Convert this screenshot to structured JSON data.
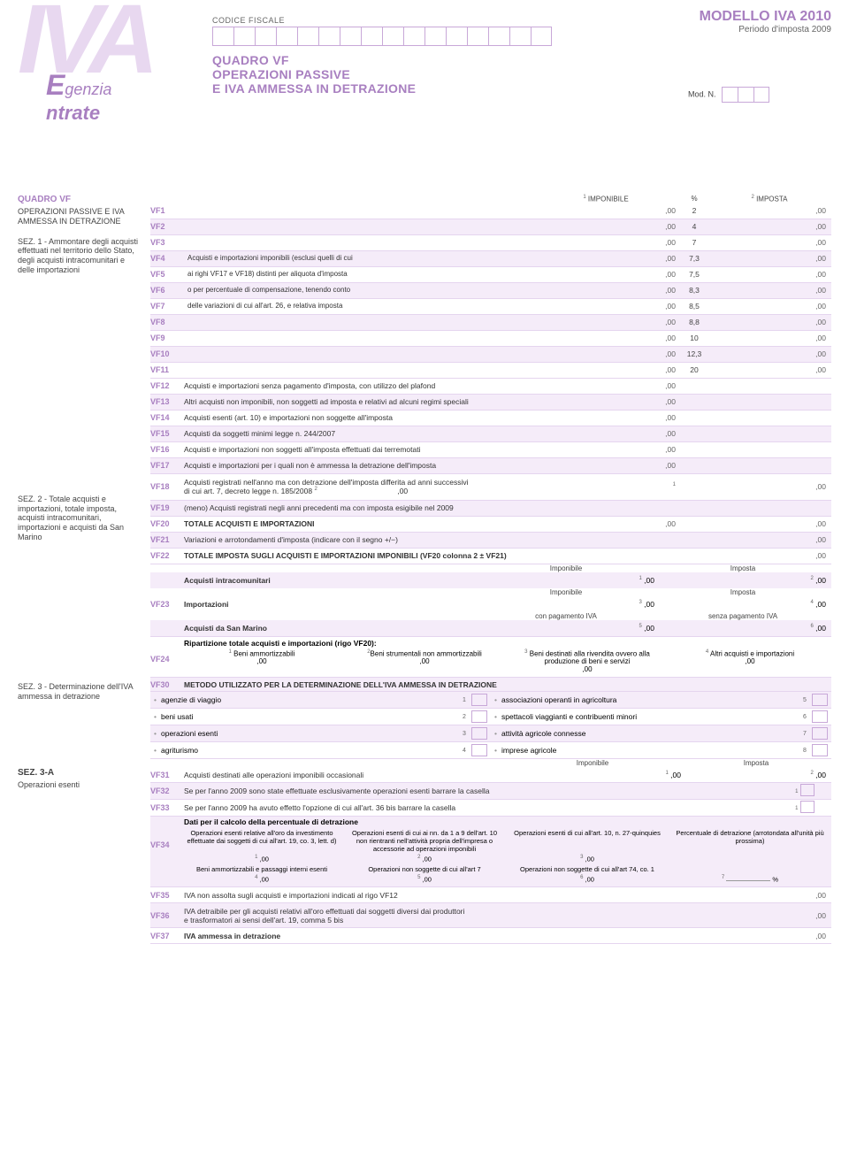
{
  "header": {
    "codice_fiscale_label": "CODICE FISCALE",
    "modello_title": "MODELLO IVA 2010",
    "modello_sub": "Periodo d'imposta 2009",
    "quadro_title": "QUADRO VF",
    "quadro_sub1": "OPERAZIONI PASSIVE",
    "quadro_sub2": "E IVA AMMESSA IN DETRAZIONE",
    "modn": "Mod. N.",
    "iva": "IVA",
    "agenzia": "genzia",
    "ntrate": "ntrate"
  },
  "sidebar": {
    "s1_title": "QUADRO VF",
    "s1_sub": "OPERAZIONI PASSIVE E IVA AMMESSA IN DETRAZIONE",
    "s1b": "SEZ. 1 - Ammontare degli acquisti effettuati nel territorio dello Stato, degli acquisti intracomunitari e delle importazioni",
    "s2": "SEZ. 2 - Totale acquisti e importazioni, totale imposta, acquisti intracomunitari, importazioni e acquisti da San Marino",
    "s3": "SEZ. 3 - Determinazione dell'IVA ammessa in detrazione",
    "s3a_title": "SEZ. 3-A",
    "s3a_sub": "Operazioni esenti"
  },
  "cols": {
    "imponibile": "IMPONIBILE",
    "pct": "%",
    "imposta": "IMPOSTA"
  },
  "vf_note": {
    "l1": "Acquisti e importazioni imponibili (esclusi quelli di cui",
    "l2": "ai righi VF17 e VF18) distinti per aliquota d'imposta",
    "l3": "o per percentuale di compensazione, tenendo conto",
    "l4": "delle variazioni di cui all'art. 26, e relativa imposta"
  },
  "pcts": [
    "2",
    "4",
    "7",
    "7,3",
    "7,5",
    "8,3",
    "8,5",
    "8,8",
    "10",
    "12,3",
    "20"
  ],
  "suffix": ",00",
  "rows": {
    "vf1": "VF1",
    "vf2": "VF2",
    "vf3": "VF3",
    "vf4": "VF4",
    "vf5": "VF5",
    "vf6": "VF6",
    "vf7": "VF7",
    "vf8": "VF8",
    "vf9": "VF9",
    "vf10": "VF10",
    "vf11": "VF11",
    "vf12": "VF12",
    "vf12t": "Acquisti e importazioni senza pagamento d'imposta, con utilizzo del plafond",
    "vf13": "VF13",
    "vf13t": "Altri acquisti non imponibili, non soggetti ad imposta e relativi ad alcuni regimi speciali",
    "vf14": "VF14",
    "vf14t": "Acquisti esenti (art. 10) e importazioni non soggette all'imposta",
    "vf15": "VF15",
    "vf15t": "Acquisti da soggetti minimi legge n. 244/2007",
    "vf16": "VF16",
    "vf16t": "Acquisti e importazioni non soggetti all'imposta effettuati dai terremotati",
    "vf17": "VF17",
    "vf17t": "Acquisti e importazioni per i quali non è ammessa la detrazione dell'imposta",
    "vf18": "VF18",
    "vf18t1": "Acquisti registrati nell'anno ma con detrazione dell'imposta differita ad anni successivi",
    "vf18t2": "di cui art. 7, decreto legge n. 185/2008",
    "vf19": "VF19",
    "vf19t": "(meno) Acquisti registrati negli anni precedenti ma con imposta esigibile nel 2009",
    "vf20": "VF20",
    "vf20t": "TOTALE ACQUISTI E IMPORTAZIONI",
    "vf21": "VF21",
    "vf21t": "Variazioni e arrotondamenti d'imposta (indicare con il segno +/−)",
    "vf22": "VF22",
    "vf22t": "TOTALE IMPOSTA SUGLI ACQUISTI E IMPORTAZIONI IMPONIBILI (VF20 colonna 2 ± VF21)",
    "vf23": "VF23",
    "vf23_acq": "Acquisti intracomunitari",
    "vf23_imp": "Importazioni",
    "vf23_sm": "Acquisti da San Marino",
    "vf23_imponibile": "Imponibile",
    "vf23_imposta": "Imposta",
    "vf23_conpag": "con pagamento IVA",
    "vf23_senzapag": "senza pagamento IVA",
    "vf24": "VF24",
    "vf24_title": "Ripartizione totale acquisti e importazioni (rigo VF20):",
    "vf24_c1": "Beni ammortizzabili",
    "vf24_c2": "Beni strumentali non ammortizzabili",
    "vf24_c3": "Beni destinati alla rivendita ovvero alla produzione di beni e servizi",
    "vf24_c4": "Altri acquisti e importazioni",
    "vf30": "VF30",
    "vf30t": "METODO UTILIZZATO PER LA DETERMINAZIONE DELL'IVA AMMESSA IN DETRAZIONE",
    "vf30_items": [
      {
        "t": "agenzie di viaggio",
        "n": "1"
      },
      {
        "t": "associazioni operanti in agricoltura",
        "n": "5"
      },
      {
        "t": "beni usati",
        "n": "2"
      },
      {
        "t": "spettacoli viaggianti e contribuenti minori",
        "n": "6"
      },
      {
        "t": "operazioni esenti",
        "n": "3"
      },
      {
        "t": "attività agricole connesse",
        "n": "7"
      },
      {
        "t": "agriturismo",
        "n": "4"
      },
      {
        "t": "imprese agricole",
        "n": "8"
      }
    ],
    "vf31": "VF31",
    "vf31t": "Acquisti destinati alle operazioni imponibili occasionali",
    "vf32": "VF32",
    "vf32t": "Se per l'anno 2009 sono state effettuate esclusivamente operazioni esenti barrare la casella",
    "vf33": "VF33",
    "vf33t": "Se per l'anno 2009 ha avuto effetto l'opzione di cui all'art. 36 bis barrare la casella",
    "vf34": "VF34",
    "vf34_title": "Dati per il calcolo della percentuale di detrazione",
    "vf34_h1": "Operazioni esenti relative all'oro da investimento effettuate dai soggetti di cui all'art. 19, co. 3, lett. d)",
    "vf34_h2": "Operazioni esenti di cui ai nn. da 1 a 9 dell'art. 10 non rientranti nell'attività propria dell'impresa o accessorie ad operazioni imponibili",
    "vf34_h3": "Operazioni esenti di cui all'art. 10, n. 27-quinquies",
    "vf34_h4": "Percentuale di detrazione (arrotondata all'unità più prossima)",
    "vf34_h5": "Beni ammortizzabili e passaggi interni esenti",
    "vf34_h6": "Operazioni non soggette di cui all'art 7",
    "vf34_h7": "Operazioni non soggette di cui all'art 74, co. 1",
    "vf35": "VF35",
    "vf35t": "IVA non assolta sugli acquisti e importazioni indicati al rigo VF12",
    "vf36": "VF36",
    "vf36t1": "IVA detraibile per gli acquisti relativi all'oro effettuati dai soggetti diversi dai produttori",
    "vf36t2": "e trasformatori ai sensi dell'art. 19, comma 5 bis",
    "vf37": "VF37",
    "vf37t": "IVA ammessa in detrazione"
  },
  "colors": {
    "accent": "#a87fc0",
    "light": "#e8d8f0",
    "border": "#c8a8d8",
    "rowline": "#e5d5ef",
    "alt": "#f5ecf9"
  }
}
